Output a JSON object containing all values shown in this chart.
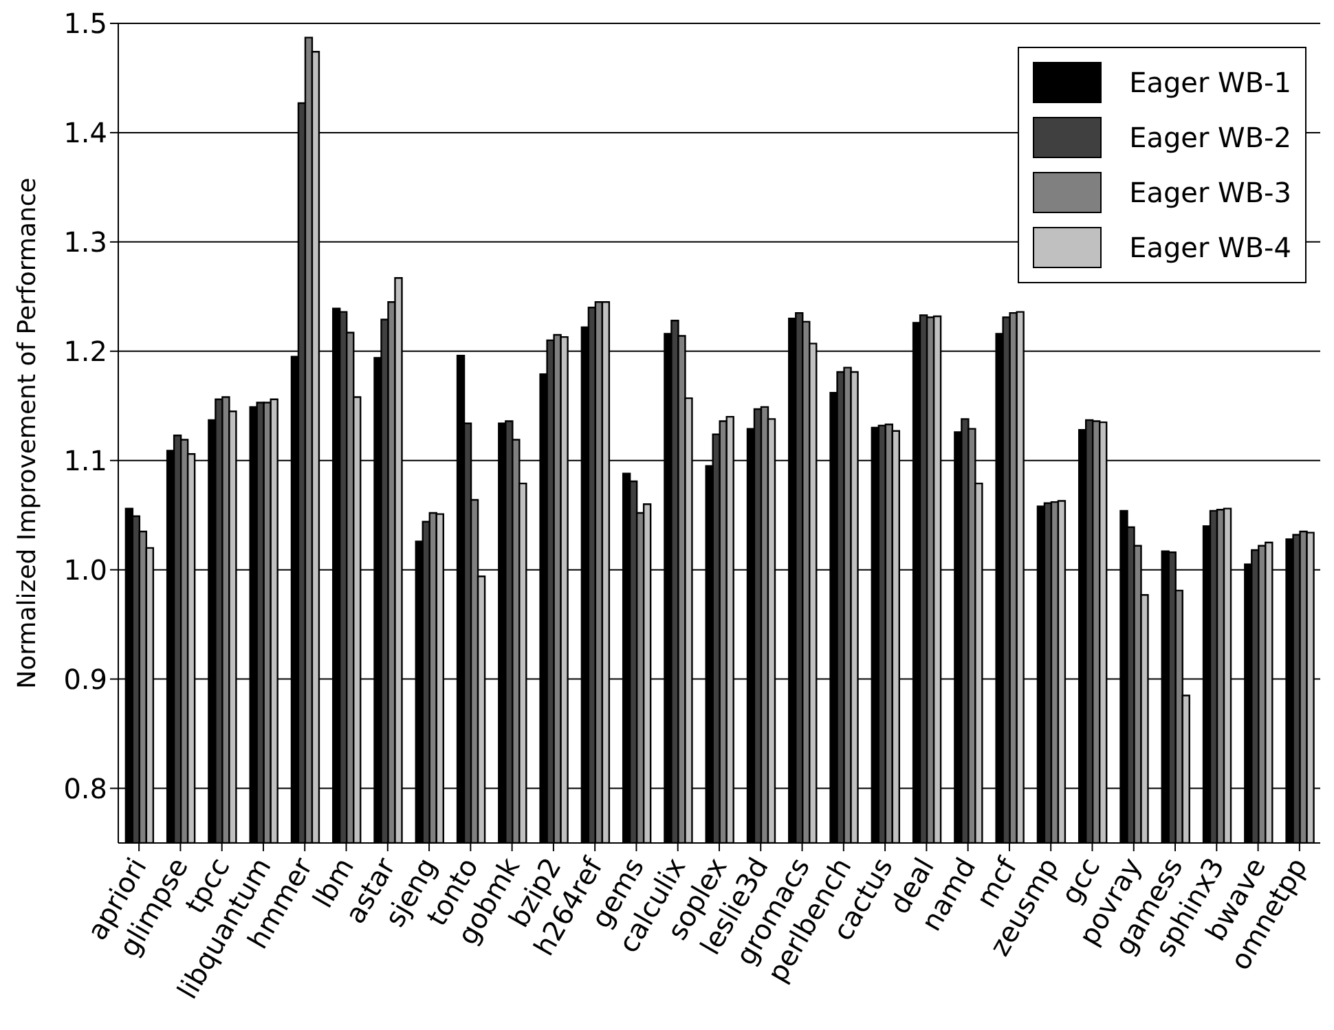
{
  "chart_data": {
    "type": "bar",
    "ylabel": "Normalized Improvement of Performance",
    "categories": [
      "apriori",
      "glimpse",
      "tpcc",
      "libquantum",
      "hmmer",
      "lbm",
      "astar",
      "sjeng",
      "tonto",
      "gobmk",
      "bzip2",
      "h264ref",
      "gems",
      "calculix",
      "soplex",
      "leslie3d",
      "gromacs",
      "perlbench",
      "cactus",
      "deal",
      "namd",
      "mcf",
      "zeusmp",
      "gcc",
      "povray",
      "gamess",
      "sphinx3",
      "bwave",
      "omnetpp"
    ],
    "series": [
      {
        "name": "Eager WB-1",
        "color": "#000000",
        "values": [
          1.056,
          1.109,
          1.137,
          1.149,
          1.195,
          1.239,
          1.194,
          1.026,
          1.196,
          1.134,
          1.179,
          1.222,
          1.088,
          1.216,
          1.095,
          1.129,
          1.23,
          1.162,
          1.13,
          1.226,
          1.126,
          1.216,
          1.058,
          1.128,
          1.054,
          1.017,
          1.04,
          1.005,
          1.028
        ]
      },
      {
        "name": "Eager WB-2",
        "color": "#404040",
        "values": [
          1.049,
          1.123,
          1.156,
          1.153,
          1.427,
          1.236,
          1.229,
          1.044,
          1.134,
          1.136,
          1.21,
          1.24,
          1.081,
          1.228,
          1.124,
          1.147,
          1.235,
          1.181,
          1.132,
          1.233,
          1.138,
          1.231,
          1.061,
          1.137,
          1.039,
          1.016,
          1.054,
          1.018,
          1.032
        ]
      },
      {
        "name": "Eager WB-3",
        "color": "#808080",
        "values": [
          1.035,
          1.119,
          1.158,
          1.153,
          1.487,
          1.217,
          1.245,
          1.052,
          1.064,
          1.119,
          1.215,
          1.245,
          1.052,
          1.214,
          1.136,
          1.149,
          1.227,
          1.185,
          1.133,
          1.231,
          1.129,
          1.235,
          1.062,
          1.136,
          1.022,
          0.981,
          1.055,
          1.022,
          1.035
        ]
      },
      {
        "name": "Eager WB-4",
        "color": "#c0c0c0",
        "values": [
          1.02,
          1.106,
          1.145,
          1.156,
          1.474,
          1.158,
          1.267,
          1.051,
          0.994,
          1.079,
          1.213,
          1.245,
          1.06,
          1.157,
          1.14,
          1.138,
          1.207,
          1.181,
          1.127,
          1.232,
          1.079,
          1.236,
          1.063,
          1.135,
          0.977,
          0.885,
          1.056,
          1.025,
          1.034
        ]
      }
    ],
    "ylim": [
      0.75,
      1.5
    ],
    "yticks": [
      0.8,
      0.9,
      {
        "value": 1.0,
        "label": "1.0"
      },
      1.1,
      1.2,
      1.3,
      1.4,
      1.5
    ],
    "grid": "y",
    "legend": "top right"
  }
}
